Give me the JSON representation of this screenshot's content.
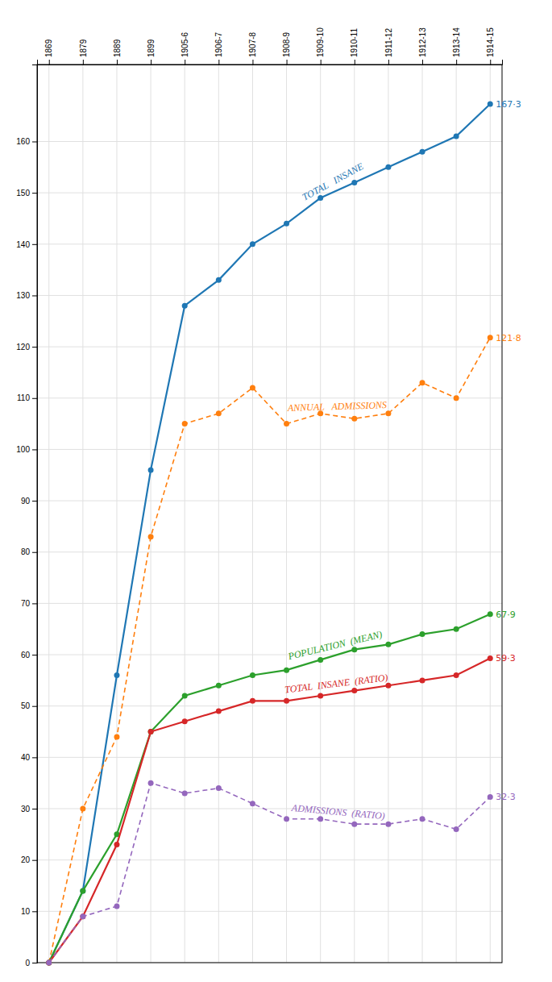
{
  "chart_data": {
    "type": "line",
    "categories": [
      "1869",
      "1879",
      "1889",
      "1899",
      "1905-6",
      "1906-7",
      "1907-8",
      "1908-9",
      "1909-10",
      "1910-11",
      "1911-12",
      "1912-13",
      "1913-14",
      "1914-15"
    ],
    "series": [
      {
        "name": "TOTAL   INSANE",
        "values": [
          0,
          14,
          56,
          96,
          128,
          133,
          140,
          144,
          149,
          152,
          155,
          158,
          161,
          167.3
        ],
        "value_labels": [
          null,
          null,
          null,
          null,
          null,
          null,
          null,
          null,
          null,
          null,
          null,
          null,
          null,
          "167·3"
        ],
        "line_style": "solid",
        "marker": "circle"
      },
      {
        "name": "ANNUAL   ADMISSIONS",
        "values": [
          0,
          30,
          44,
          83,
          105,
          107,
          112,
          105,
          107,
          106,
          107,
          113,
          110,
          121.8
        ],
        "value_labels": [
          null,
          null,
          null,
          null,
          null,
          null,
          null,
          null,
          null,
          null,
          null,
          null,
          null,
          "121·8"
        ],
        "line_style": "dashed",
        "marker": "circle"
      },
      {
        "name": "POPULATION  (MEAN)",
        "values": [
          0,
          14,
          25,
          45,
          52,
          54,
          56,
          57,
          59,
          61,
          62,
          64,
          65,
          67.9
        ],
        "value_labels": [
          null,
          null,
          null,
          null,
          null,
          null,
          null,
          null,
          null,
          null,
          null,
          null,
          null,
          "67·9"
        ],
        "line_style": "solid",
        "marker": "circle"
      },
      {
        "name": "TOTAL  INSANE  (RATIO)",
        "values": [
          0,
          9,
          23,
          45,
          47,
          49,
          51,
          51,
          52,
          53,
          54,
          55,
          56,
          59.3
        ],
        "value_labels": [
          null,
          null,
          null,
          null,
          null,
          null,
          null,
          null,
          null,
          null,
          null,
          null,
          null,
          "59·3"
        ],
        "line_style": "solid",
        "marker": "circle"
      },
      {
        "name": "ADMISSIONS  (RATIO)",
        "values": [
          0,
          9,
          11,
          35,
          33,
          34,
          31,
          28,
          28,
          27,
          27,
          28,
          26,
          32.3
        ],
        "value_labels": [
          null,
          null,
          null,
          null,
          null,
          null,
          null,
          null,
          null,
          null,
          null,
          null,
          null,
          "32·3"
        ],
        "line_style": "dashed",
        "marker": "circle"
      }
    ],
    "ylim": [
      0,
      175
    ],
    "yticks": [
      0,
      10,
      20,
      30,
      40,
      50,
      60,
      70,
      80,
      90,
      100,
      110,
      120,
      130,
      140,
      150,
      160
    ],
    "grid": true,
    "data_labels": true
  }
}
